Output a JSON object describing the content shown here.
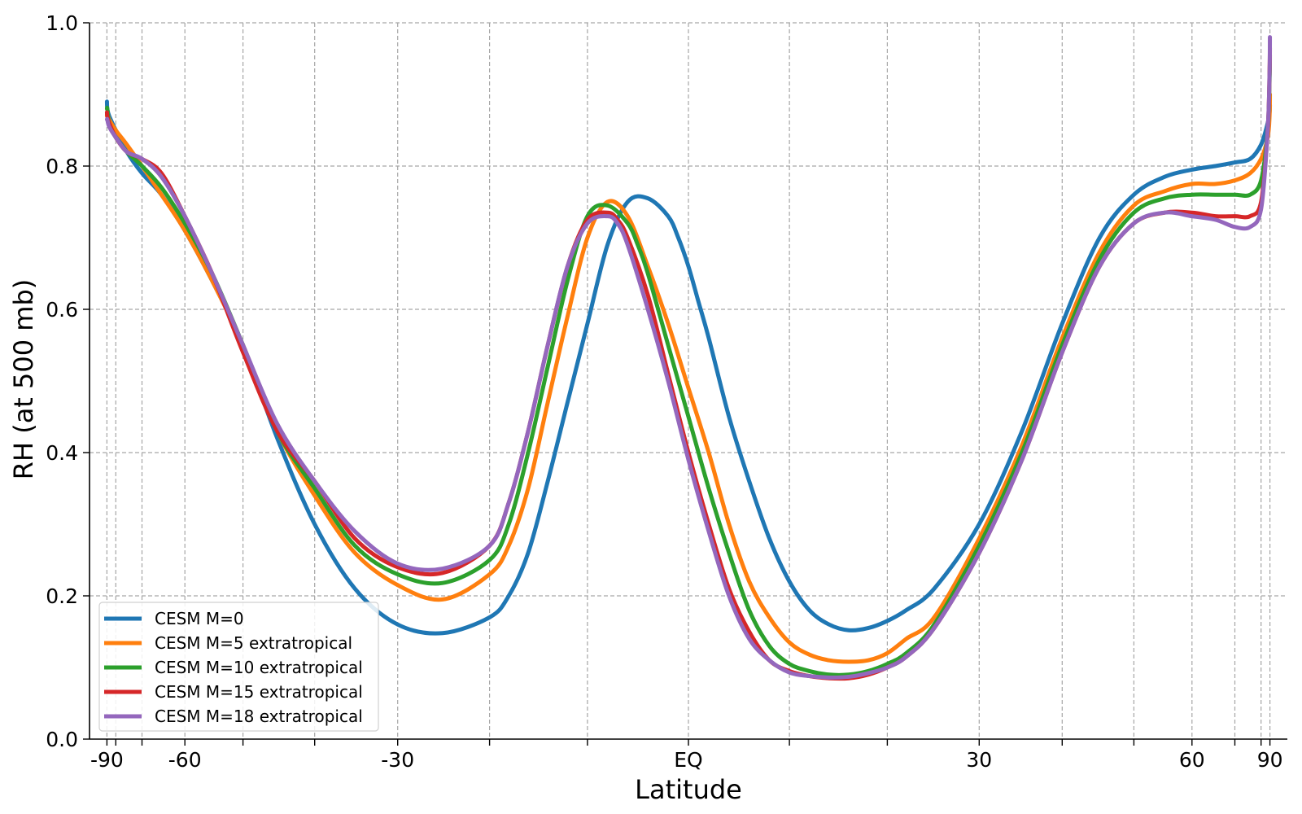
{
  "chart_data": {
    "type": "line",
    "xlabel": "Latitude",
    "ylabel": "RH (at 500 mb)",
    "xlim": [
      -1.03,
      1.03
    ],
    "ylim": [
      0.0,
      1.0
    ],
    "xscale": "sine of latitude",
    "grid": true,
    "legend_position": "lower-left",
    "x_tick_labels": [
      {
        "label": "-90",
        "value": -90
      },
      {
        "label": "-60",
        "value": -60
      },
      {
        "label": "-30",
        "value": -30
      },
      {
        "label": "EQ",
        "value": 0
      },
      {
        "label": "30",
        "value": 30
      },
      {
        "label": "60",
        "value": 60
      },
      {
        "label": "90",
        "value": 90
      }
    ],
    "x_grid_latitudes": [
      -90,
      -80,
      -70,
      -60,
      -50,
      -40,
      -30,
      -20,
      -10,
      0,
      10,
      20,
      30,
      40,
      50,
      60,
      70,
      80,
      90
    ],
    "y_ticks": [
      {
        "label": "0.0",
        "value": 0.0
      },
      {
        "label": "0.2",
        "value": 0.2
      },
      {
        "label": "0.4",
        "value": 0.4
      },
      {
        "label": "0.6",
        "value": 0.6
      },
      {
        "label": "0.8",
        "value": 0.8
      },
      {
        "label": "1.0",
        "value": 1.0
      }
    ],
    "series": [
      {
        "name": "CESM M=0",
        "color": "#1f77b4",
        "x": [
          -90,
          -88,
          -85,
          -80,
          -75,
          -70,
          -65,
          -60,
          -55,
          -50,
          -45,
          -40,
          -35,
          -30,
          -25,
          -20,
          -18,
          -16,
          -14,
          -12,
          -10,
          -8,
          -6,
          -4,
          -2,
          -1,
          0,
          1,
          2,
          4,
          6,
          8,
          10,
          12,
          14,
          16,
          18,
          20,
          22,
          25,
          30,
          35,
          40,
          45,
          50,
          55,
          60,
          65,
          70,
          75,
          80,
          85,
          88,
          90
        ],
        "y": [
          0.89,
          0.88,
          0.87,
          0.85,
          0.82,
          0.79,
          0.76,
          0.71,
          0.64,
          0.55,
          0.42,
          0.3,
          0.21,
          0.16,
          0.148,
          0.17,
          0.2,
          0.26,
          0.36,
          0.47,
          0.58,
          0.69,
          0.75,
          0.755,
          0.73,
          0.7,
          0.66,
          0.61,
          0.56,
          0.45,
          0.36,
          0.28,
          0.22,
          0.18,
          0.16,
          0.152,
          0.155,
          0.165,
          0.18,
          0.21,
          0.3,
          0.43,
          0.58,
          0.7,
          0.76,
          0.785,
          0.795,
          0.8,
          0.805,
          0.81,
          0.83,
          0.86,
          0.875,
          0.885
        ]
      },
      {
        "name": "CESM M=5 extratropical",
        "color": "#ff7f0e",
        "x": [
          -90,
          -88,
          -85,
          -80,
          -75,
          -70,
          -65,
          -60,
          -55,
          -50,
          -45,
          -40,
          -35,
          -30,
          -25,
          -20,
          -18,
          -16,
          -14,
          -12,
          -10,
          -8,
          -6,
          -4,
          -2,
          0,
          2,
          4,
          6,
          8,
          10,
          12,
          14,
          16,
          18,
          20,
          22,
          25,
          30,
          35,
          40,
          45,
          50,
          55,
          60,
          65,
          70,
          75,
          80,
          85,
          88,
          90
        ],
        "y": [
          0.87,
          0.875,
          0.865,
          0.85,
          0.83,
          0.8,
          0.76,
          0.71,
          0.64,
          0.55,
          0.43,
          0.34,
          0.26,
          0.215,
          0.195,
          0.23,
          0.27,
          0.35,
          0.47,
          0.59,
          0.7,
          0.75,
          0.73,
          0.66,
          0.58,
          0.49,
          0.4,
          0.3,
          0.22,
          0.17,
          0.135,
          0.118,
          0.11,
          0.108,
          0.11,
          0.12,
          0.14,
          0.17,
          0.28,
          0.41,
          0.56,
          0.68,
          0.745,
          0.765,
          0.775,
          0.775,
          0.78,
          0.79,
          0.81,
          0.84,
          0.87,
          0.9
        ]
      },
      {
        "name": "CESM M=10 extratropical",
        "color": "#2ca02c",
        "x": [
          -90,
          -88,
          -85,
          -80,
          -75,
          -70,
          -65,
          -60,
          -55,
          -50,
          -45,
          -40,
          -35,
          -30,
          -25,
          -20,
          -18,
          -16,
          -14,
          -12,
          -10,
          -8,
          -6,
          -5,
          -4,
          -2,
          0,
          2,
          4,
          6,
          8,
          10,
          12,
          14,
          16,
          18,
          20,
          22,
          25,
          30,
          35,
          40,
          45,
          50,
          55,
          60,
          65,
          70,
          75,
          80,
          85,
          88,
          90
        ],
        "y": [
          0.88,
          0.88,
          0.86,
          0.84,
          0.82,
          0.8,
          0.77,
          0.72,
          0.65,
          0.55,
          0.43,
          0.35,
          0.27,
          0.23,
          0.218,
          0.25,
          0.3,
          0.4,
          0.52,
          0.64,
          0.73,
          0.745,
          0.72,
          0.69,
          0.65,
          0.55,
          0.45,
          0.35,
          0.26,
          0.18,
          0.13,
          0.105,
          0.095,
          0.09,
          0.09,
          0.095,
          0.105,
          0.12,
          0.16,
          0.27,
          0.4,
          0.55,
          0.67,
          0.735,
          0.755,
          0.76,
          0.76,
          0.76,
          0.76,
          0.78,
          0.85,
          0.92,
          0.955
        ]
      },
      {
        "name": "CESM M=15 extratropical",
        "color": "#d62728",
        "x": [
          -90,
          -88,
          -85,
          -80,
          -75,
          -70,
          -65,
          -60,
          -55,
          -50,
          -45,
          -40,
          -35,
          -30,
          -25,
          -20,
          -18,
          -16,
          -14,
          -12,
          -10,
          -8,
          -7,
          -6,
          -4,
          -2,
          0,
          2,
          4,
          6,
          8,
          10,
          12,
          14,
          16,
          18,
          20,
          22,
          25,
          30,
          35,
          40,
          45,
          50,
          55,
          60,
          65,
          70,
          75,
          80,
          85,
          88,
          90
        ],
        "y": [
          0.875,
          0.87,
          0.86,
          0.84,
          0.82,
          0.81,
          0.79,
          0.73,
          0.65,
          0.54,
          0.43,
          0.36,
          0.28,
          0.24,
          0.232,
          0.27,
          0.33,
          0.43,
          0.55,
          0.66,
          0.725,
          0.735,
          0.725,
          0.7,
          0.62,
          0.51,
          0.4,
          0.3,
          0.21,
          0.15,
          0.11,
          0.095,
          0.088,
          0.085,
          0.085,
          0.09,
          0.1,
          0.115,
          0.155,
          0.26,
          0.39,
          0.54,
          0.66,
          0.72,
          0.735,
          0.735,
          0.73,
          0.73,
          0.73,
          0.75,
          0.85,
          0.93,
          0.965
        ]
      },
      {
        "name": "CESM M=18 extratropical",
        "color": "#9467bd",
        "x": [
          -90,
          -88,
          -85,
          -80,
          -75,
          -70,
          -65,
          -60,
          -55,
          -50,
          -45,
          -40,
          -35,
          -30,
          -25,
          -20,
          -18,
          -16,
          -14,
          -12,
          -10,
          -8,
          -7,
          -6,
          -4,
          -2,
          0,
          2,
          4,
          6,
          8,
          10,
          12,
          14,
          16,
          18,
          20,
          22,
          25,
          30,
          35,
          40,
          45,
          50,
          55,
          60,
          65,
          70,
          75,
          80,
          85,
          88,
          90
        ],
        "y": [
          0.865,
          0.865,
          0.855,
          0.84,
          0.82,
          0.81,
          0.785,
          0.73,
          0.65,
          0.55,
          0.44,
          0.36,
          0.29,
          0.245,
          0.238,
          0.27,
          0.33,
          0.43,
          0.55,
          0.66,
          0.72,
          0.73,
          0.72,
          0.69,
          0.6,
          0.5,
          0.39,
          0.29,
          0.2,
          0.14,
          0.11,
          0.093,
          0.088,
          0.086,
          0.087,
          0.092,
          0.1,
          0.115,
          0.155,
          0.26,
          0.39,
          0.54,
          0.66,
          0.72,
          0.735,
          0.73,
          0.725,
          0.715,
          0.715,
          0.74,
          0.85,
          0.93,
          0.98
        ]
      }
    ]
  }
}
